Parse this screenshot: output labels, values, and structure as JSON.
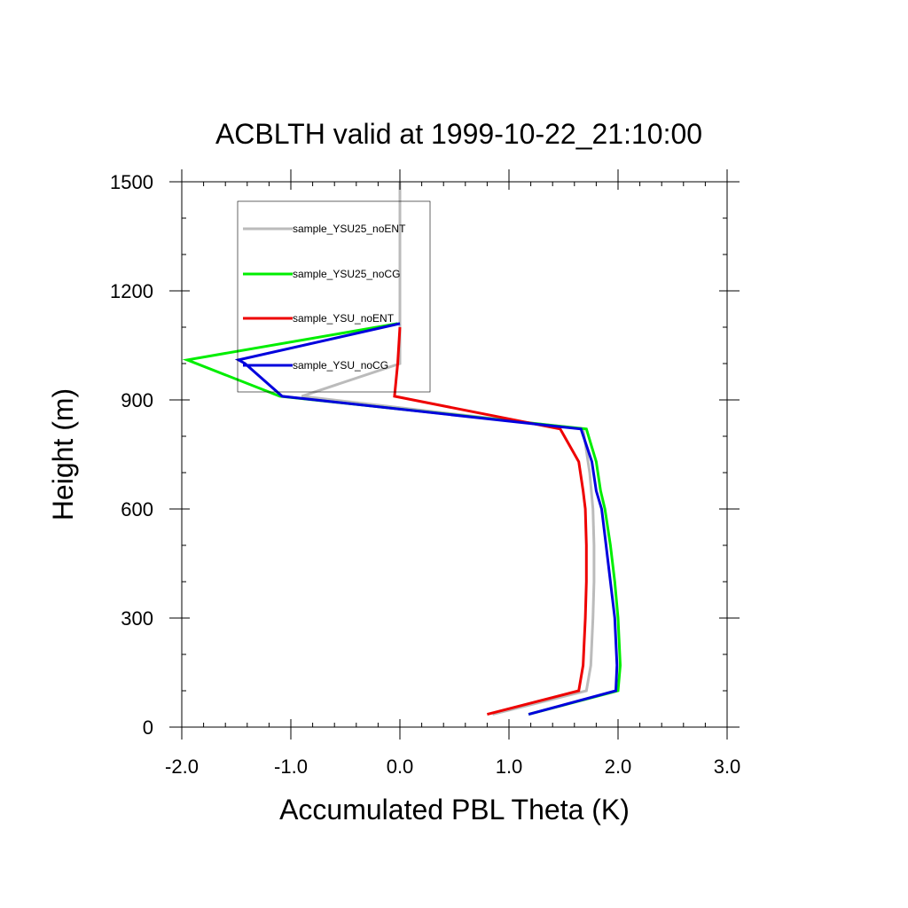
{
  "chart_data": {
    "type": "line",
    "title": "ACBLTH valid at 1999-10-22_21:10:00",
    "xlabel": "Accumulated PBL Theta (K)",
    "ylabel": "Height (m)",
    "xlim": [
      -2.0,
      3.0
    ],
    "ylim": [
      0,
      1500
    ],
    "xticks": [
      -2.0,
      -1.0,
      0.0,
      1.0,
      2.0,
      3.0
    ],
    "xtick_labels": [
      "-2.0",
      "-1.0",
      "0.0",
      "1.0",
      "2.0",
      "3.0"
    ],
    "yticks": [
      0,
      300,
      600,
      900,
      1200,
      1500
    ],
    "ytick_labels": [
      "0",
      "300",
      "600",
      "900",
      "1200",
      "1500"
    ],
    "grid": false,
    "legend_position": "top-left",
    "series": [
      {
        "name": "sample_YSU25_noENT",
        "color": "#bbbbbb",
        "x": [
          0.85,
          1.71,
          1.75,
          1.77,
          1.78,
          1.78,
          1.77,
          1.74,
          1.68,
          -0.9,
          0.0,
          0.0,
          0.0,
          0.0,
          0.0
        ],
        "y": [
          35,
          100,
          170,
          300,
          400,
          500,
          600,
          700,
          820,
          910,
          1000,
          1100,
          1200,
          1300,
          1500
        ]
      },
      {
        "name": "sample_YSU25_noCG",
        "color": "#00ee00",
        "x": [
          1.18,
          2.0,
          2.02,
          2.0,
          1.97,
          1.93,
          1.88,
          1.84,
          1.8,
          1.71,
          -1.1,
          -1.95,
          -0.02
        ],
        "y": [
          35,
          100,
          170,
          300,
          400,
          500,
          600,
          650,
          730,
          820,
          910,
          1010,
          1110
        ]
      },
      {
        "name": "sample_YSU_noENT",
        "color": "#ee0000",
        "x": [
          0.8,
          1.64,
          1.68,
          1.7,
          1.71,
          1.71,
          1.7,
          1.68,
          1.64,
          1.47,
          -0.05,
          -0.02,
          0.0
        ],
        "y": [
          35,
          100,
          170,
          300,
          400,
          500,
          600,
          650,
          730,
          820,
          910,
          1000,
          1100
        ]
      },
      {
        "name": "sample_YSU_noCG",
        "color": "#0000dd",
        "x": [
          1.18,
          1.98,
          1.99,
          1.97,
          1.93,
          1.89,
          1.85,
          1.8,
          1.76,
          1.66,
          -1.08,
          -1.42,
          -1.48,
          0.0
        ],
        "y": [
          35,
          100,
          170,
          300,
          400,
          500,
          600,
          650,
          730,
          820,
          910,
          1000,
          1010,
          1110
        ]
      }
    ],
    "legend_order": [
      0,
      1,
      2,
      3
    ]
  }
}
